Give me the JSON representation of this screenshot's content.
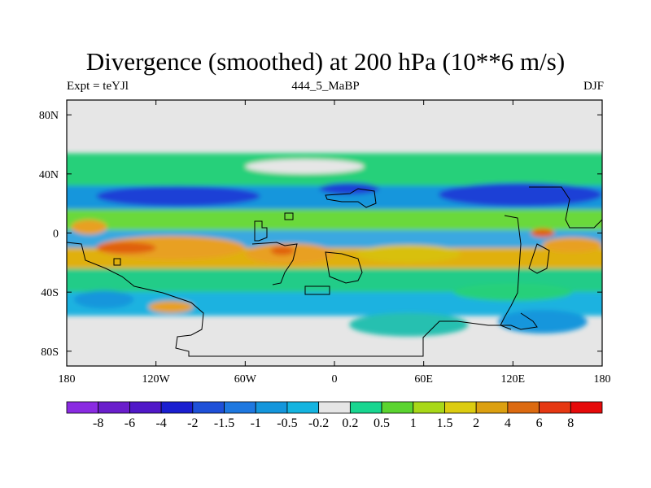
{
  "title": "Divergence (smoothed) at 200 hPa (10**6 m/s)",
  "left_label": "Expt = teYJl",
  "center_label": "444_5_MaBP",
  "right_label": "DJF",
  "map": {
    "lon_range": [
      -180,
      180
    ],
    "lat_range": [
      -90,
      90
    ],
    "lon_ticks": [
      {
        "value": -180,
        "label": "180"
      },
      {
        "value": -120,
        "label": "120W"
      },
      {
        "value": -60,
        "label": "60W"
      },
      {
        "value": 0,
        "label": "0"
      },
      {
        "value": 60,
        "label": "60E"
      },
      {
        "value": 120,
        "label": "120E"
      },
      {
        "value": 180,
        "label": "180"
      }
    ],
    "lat_ticks": [
      {
        "value": 80,
        "label": "80N"
      },
      {
        "value": 40,
        "label": "40N"
      },
      {
        "value": 0,
        "label": "0"
      },
      {
        "value": -40,
        "label": "40S"
      },
      {
        "value": -80,
        "label": "80S"
      }
    ],
    "background_color": "#e6e6e6",
    "bands": [
      {
        "lat": [
          28,
          54
        ],
        "color": "#25d07a"
      },
      {
        "lat": [
          12,
          32
        ],
        "color": "#1496dc"
      },
      {
        "lat": [
          -2,
          16
        ],
        "color": "#6bd93a"
      },
      {
        "lat": [
          -14,
          2
        ],
        "color": "#3aa8e0"
      },
      {
        "lat": [
          -24,
          -10
        ],
        "color": "#e0b010"
      },
      {
        "lat": [
          -40,
          -24
        ],
        "color": "#22cc88"
      },
      {
        "lat": [
          -56,
          -40
        ],
        "color": "#1bb2e0"
      }
    ],
    "blobs": [
      {
        "lon": -20,
        "lat": 45,
        "rlon": 40,
        "rlat": 5,
        "color": "#e6e6e6"
      },
      {
        "lon": -105,
        "lat": 25,
        "rlon": 55,
        "rlat": 7,
        "color": "#1e3fd6"
      },
      {
        "lon": 125,
        "lat": 26,
        "rlon": 55,
        "rlat": 8,
        "color": "#1e3fd6"
      },
      {
        "lon": 10,
        "lat": 30,
        "rlon": 20,
        "rlat": 4,
        "color": "#1e3fd6"
      },
      {
        "lon": -165,
        "lat": 4,
        "rlon": 12,
        "rlat": 5,
        "color": "#e8a020"
      },
      {
        "lon": -110,
        "lat": -10,
        "rlon": 50,
        "rlat": 8,
        "color": "#e8a020"
      },
      {
        "lon": -140,
        "lat": -10,
        "rlon": 20,
        "rlat": 4,
        "color": "#e06010"
      },
      {
        "lon": -30,
        "lat": -14,
        "rlon": 30,
        "rlat": 7,
        "color": "#e8a020"
      },
      {
        "lon": -35,
        "lat": -12,
        "rlon": 8,
        "rlat": 3,
        "color": "#e06010"
      },
      {
        "lon": 50,
        "lat": -14,
        "rlon": 35,
        "rlat": 6,
        "color": "#d8c010"
      },
      {
        "lon": 160,
        "lat": -8,
        "rlon": 20,
        "rlat": 5,
        "color": "#e8a020"
      },
      {
        "lon": 140,
        "lat": 0,
        "rlon": 8,
        "rlat": 3,
        "color": "#e06010"
      },
      {
        "lon": -110,
        "lat": -50,
        "rlon": 15,
        "rlat": 4,
        "color": "#e8a020"
      },
      {
        "lon": 50,
        "lat": -62,
        "rlon": 40,
        "rlat": 8,
        "color": "#25c0b0"
      },
      {
        "lon": 140,
        "lat": -60,
        "rlon": 30,
        "rlat": 8,
        "color": "#1496dc"
      },
      {
        "lon": -155,
        "lat": -45,
        "rlon": 20,
        "rlat": 6,
        "color": "#1496dc"
      },
      {
        "lon": 120,
        "lat": -40,
        "rlon": 40,
        "rlat": 6,
        "color": "#25d07a"
      }
    ]
  },
  "colorbar": {
    "colors": [
      "#8a2be2",
      "#6a1ecc",
      "#5018c8",
      "#1a1ed0",
      "#1e50d8",
      "#1e78e0",
      "#1496dc",
      "#14b4e0",
      "#e6e6e6",
      "#18d690",
      "#5bd430",
      "#a8d818",
      "#dccc10",
      "#dca010",
      "#dc6a10",
      "#e63812",
      "#e60a0a"
    ],
    "labels": [
      "-8",
      "-6",
      "-4",
      "-2",
      "-1.5",
      "-1",
      "-0.5",
      "-0.2",
      "0.2",
      "0.5",
      "1",
      "1.5",
      "2",
      "4",
      "6",
      "8"
    ]
  }
}
